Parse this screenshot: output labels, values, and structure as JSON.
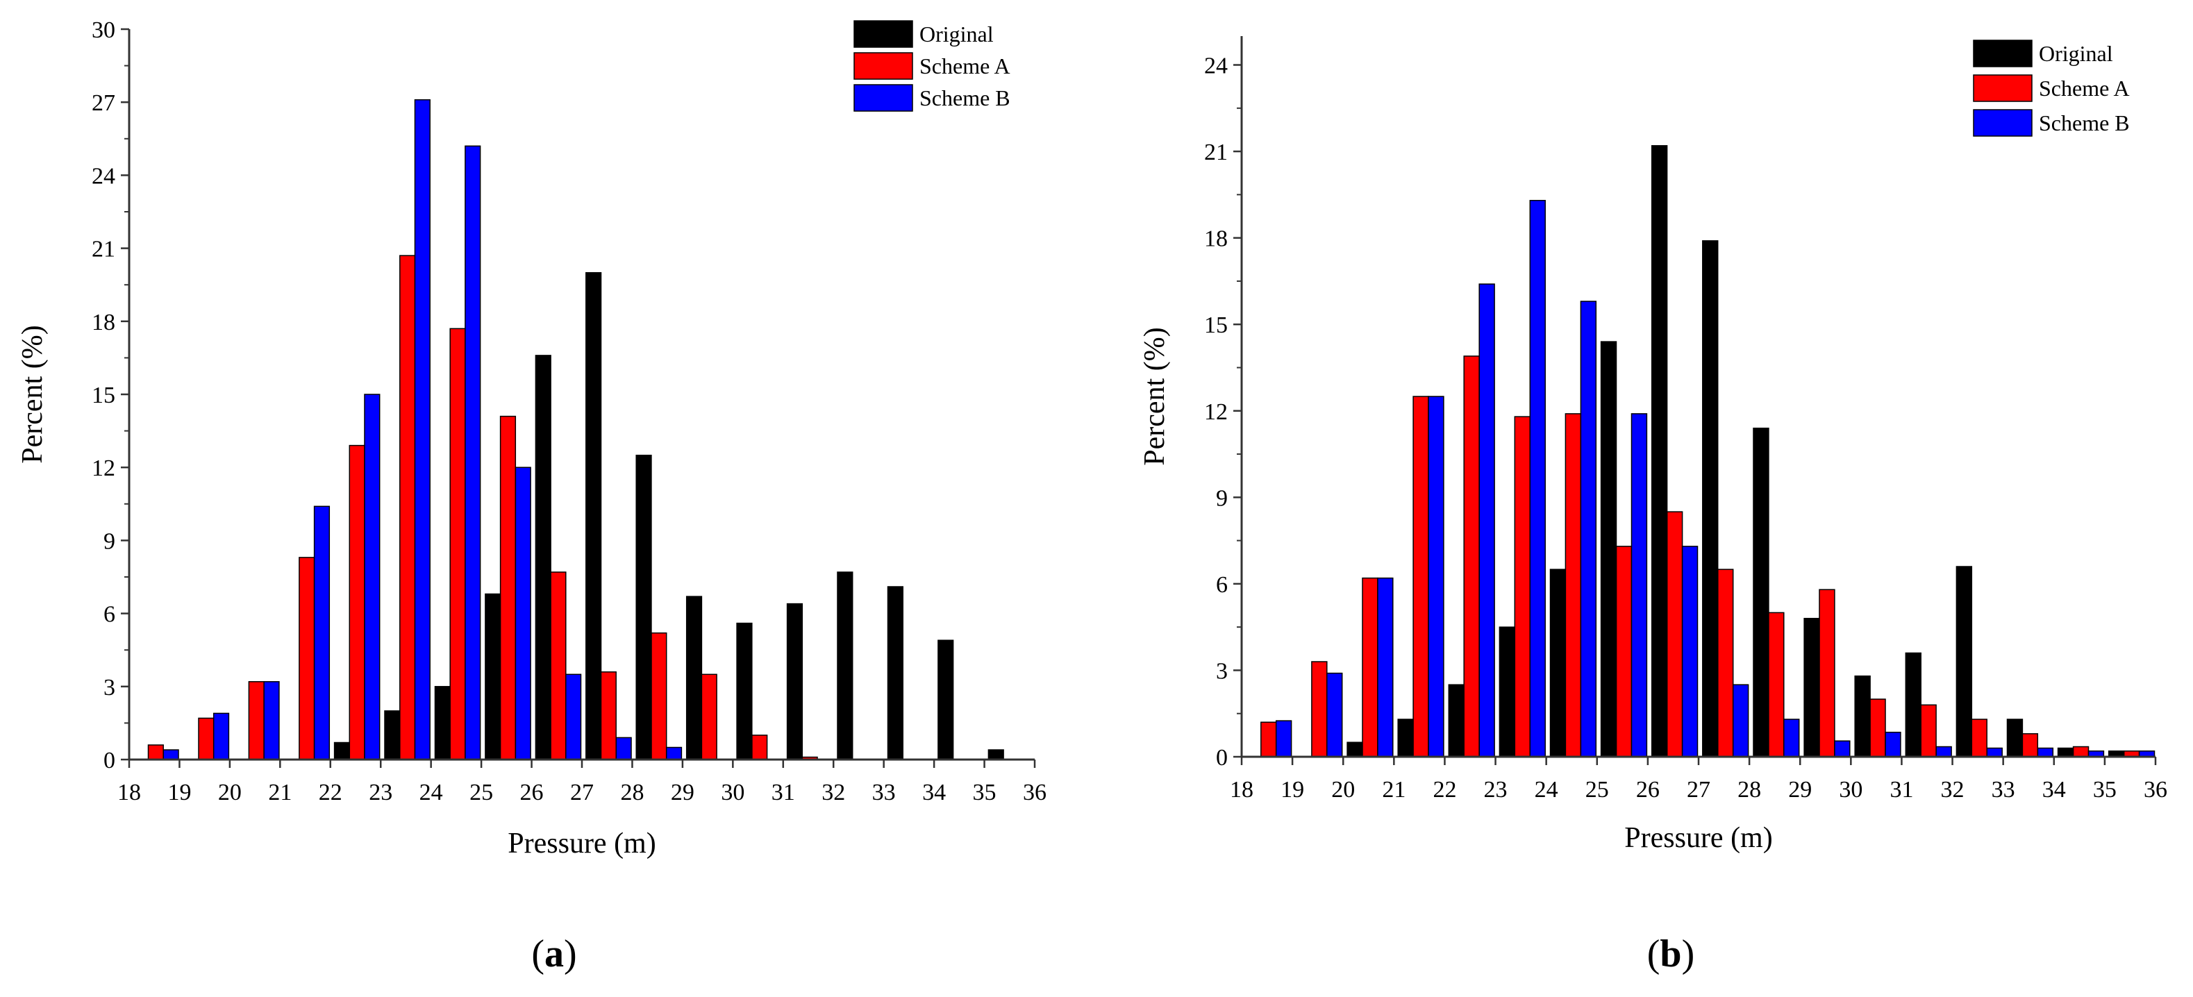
{
  "chart_data": [
    {
      "panel": "a",
      "type": "bar",
      "caption": {
        "open": "(",
        "letter": "a",
        "close": ")"
      },
      "xlabel": "Pressure (m)",
      "ylabel": "Percent (%)",
      "xlim": [
        18,
        36
      ],
      "ylim": [
        0,
        30
      ],
      "xticks": [
        "18",
        "19",
        "20",
        "21",
        "22",
        "23",
        "24",
        "25",
        "26",
        "27",
        "28",
        "29",
        "30",
        "31",
        "32",
        "33",
        "34",
        "35",
        "36"
      ],
      "yticks": [
        "0",
        "3",
        "6",
        "9",
        "12",
        "15",
        "18",
        "21",
        "24",
        "27",
        "30"
      ],
      "categories": [
        "18",
        "19",
        "20",
        "21",
        "22",
        "23",
        "24",
        "25",
        "26",
        "27",
        "28",
        "29",
        "30",
        "31",
        "32",
        "33",
        "34",
        "35"
      ],
      "legend_position": "top-right",
      "series": [
        {
          "name": "Original",
          "color": "#000000",
          "values": [
            0,
            0,
            0,
            0,
            0.7,
            2.0,
            3.0,
            6.8,
            16.6,
            20.0,
            12.5,
            6.7,
            5.6,
            6.4,
            7.7,
            7.1,
            4.9,
            0.4
          ]
        },
        {
          "name": "Scheme A",
          "color": "#ff0000",
          "values": [
            0.6,
            1.7,
            3.2,
            8.3,
            12.9,
            20.7,
            17.7,
            14.1,
            7.7,
            3.6,
            5.2,
            3.5,
            1.0,
            0.1,
            0,
            0,
            0,
            0
          ]
        },
        {
          "name": "Scheme B",
          "color": "#0000ff",
          "values": [
            0.4,
            1.9,
            3.2,
            10.4,
            15.0,
            27.1,
            25.2,
            12.0,
            3.5,
            0.9,
            0.5,
            0,
            0,
            0,
            0,
            0,
            0,
            0
          ]
        }
      ]
    },
    {
      "panel": "b",
      "type": "bar",
      "caption": {
        "open": "(",
        "letter": "b",
        "close": ")"
      },
      "xlabel": "Pressure (m)",
      "ylabel": "Percent (%)",
      "xlim": [
        18,
        36
      ],
      "ylim": [
        0,
        25
      ],
      "xticks": [
        "18",
        "19",
        "20",
        "21",
        "22",
        "23",
        "24",
        "25",
        "26",
        "27",
        "28",
        "29",
        "30",
        "31",
        "32",
        "33",
        "34",
        "35",
        "36"
      ],
      "yticks": [
        "0",
        "3",
        "6",
        "9",
        "12",
        "15",
        "18",
        "21",
        "24"
      ],
      "categories": [
        "18",
        "19",
        "20",
        "21",
        "22",
        "23",
        "24",
        "25",
        "26",
        "27",
        "28",
        "29",
        "30",
        "31",
        "32",
        "33",
        "34",
        "35"
      ],
      "legend_position": "top-right",
      "series": [
        {
          "name": "Original",
          "color": "#000000",
          "values": [
            0,
            0,
            0.5,
            1.3,
            2.5,
            4.5,
            6.5,
            14.4,
            21.2,
            17.9,
            11.4,
            4.8,
            2.8,
            3.6,
            6.6,
            1.3,
            0.3,
            0.2
          ]
        },
        {
          "name": "Scheme A",
          "color": "#ff0000",
          "values": [
            1.2,
            3.3,
            6.2,
            12.5,
            13.9,
            11.8,
            11.9,
            7.3,
            8.5,
            6.5,
            5.0,
            5.8,
            2.0,
            1.8,
            1.3,
            0.8,
            0.35,
            0.2
          ]
        },
        {
          "name": "Scheme B",
          "color": "#0000ff",
          "values": [
            1.25,
            2.9,
            6.2,
            12.5,
            16.4,
            19.3,
            15.8,
            11.9,
            7.3,
            2.5,
            1.3,
            0.55,
            0.85,
            0.35,
            0.3,
            0.3,
            0.2,
            0.2
          ]
        }
      ]
    }
  ]
}
